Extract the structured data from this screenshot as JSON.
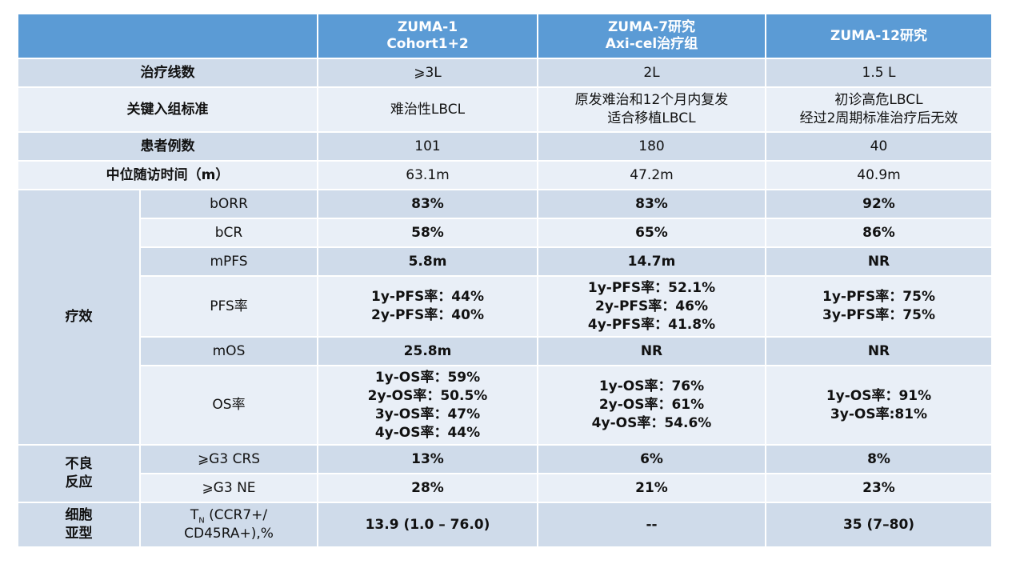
{
  "header": {
    "col1": "ZUMA-1\nCohort1+2",
    "col2": "ZUMA-7研究\nAxi-cel治疗组",
    "col3": "ZUMA-12研究"
  },
  "rows": {
    "lines": {
      "label": "治疗线数",
      "v1": "⩾3L",
      "v2": "2L",
      "v3": "1.5 L"
    },
    "criteria": {
      "label": "关键入组标准",
      "v1": "难治性LBCL",
      "v2": "原发难治和12个月内复发\n适合移植LBCL",
      "v3": "初诊高危LBCL\n经过2周期标准治疗后无效"
    },
    "patients": {
      "label": "患者例数",
      "v1": "101",
      "v2": "180",
      "v3": "40"
    },
    "followup": {
      "label": "中位随访时间（m）",
      "v1": "63.1m",
      "v2": "47.2m",
      "v3": "40.9m"
    }
  },
  "efficacy": {
    "group": "疗效",
    "borr": {
      "label": "bORR",
      "v1": "83%",
      "v2": "83%",
      "v3": "92%"
    },
    "bcr": {
      "label": "bCR",
      "v1": "58%",
      "v2": "65%",
      "v3": "86%"
    },
    "mpfs": {
      "label": "mPFS",
      "v1": "5.8m",
      "v2": "14.7m",
      "v3": "NR"
    },
    "pfsrate": {
      "label": "PFS率",
      "v1": "1y-PFS率：44%\n2y-PFS率：40%",
      "v2": "1y-PFS率：52.1%\n2y-PFS率：46%\n4y-PFS率：41.8%",
      "v3": "1y-PFS率：75%\n3y-PFS率：75%"
    },
    "mos": {
      "label": "mOS",
      "v1": "25.8m",
      "v2": "NR",
      "v3": "NR"
    },
    "osrate": {
      "label": "OS率",
      "v1": "1y-OS率：59%\n2y-OS率：50.5%\n3y-OS率：47%\n4y-OS率：44%",
      "v2": "1y-OS率：76%\n2y-OS率：61%\n4y-OS率：54.6%",
      "v3": "1y-OS率：91%\n3y-OS率:81%"
    }
  },
  "adverse": {
    "group": "不良\n反应",
    "crs": {
      "label": "⩾G3 CRS",
      "v1": "13%",
      "v2": "6%",
      "v3": "8%"
    },
    "ne": {
      "label": "⩾G3 NE",
      "v1": "28%",
      "v2": "21%",
      "v3": "23%"
    }
  },
  "subtype": {
    "group": "细胞\n亚型",
    "label_main": "T",
    "label_sub": "N",
    "label_rest": " (CCR7+/\nCD45RA+),%",
    "v1": "13.9 (1.0 – 76.0)",
    "v2": "--",
    "v3": "35 (7–80)"
  }
}
